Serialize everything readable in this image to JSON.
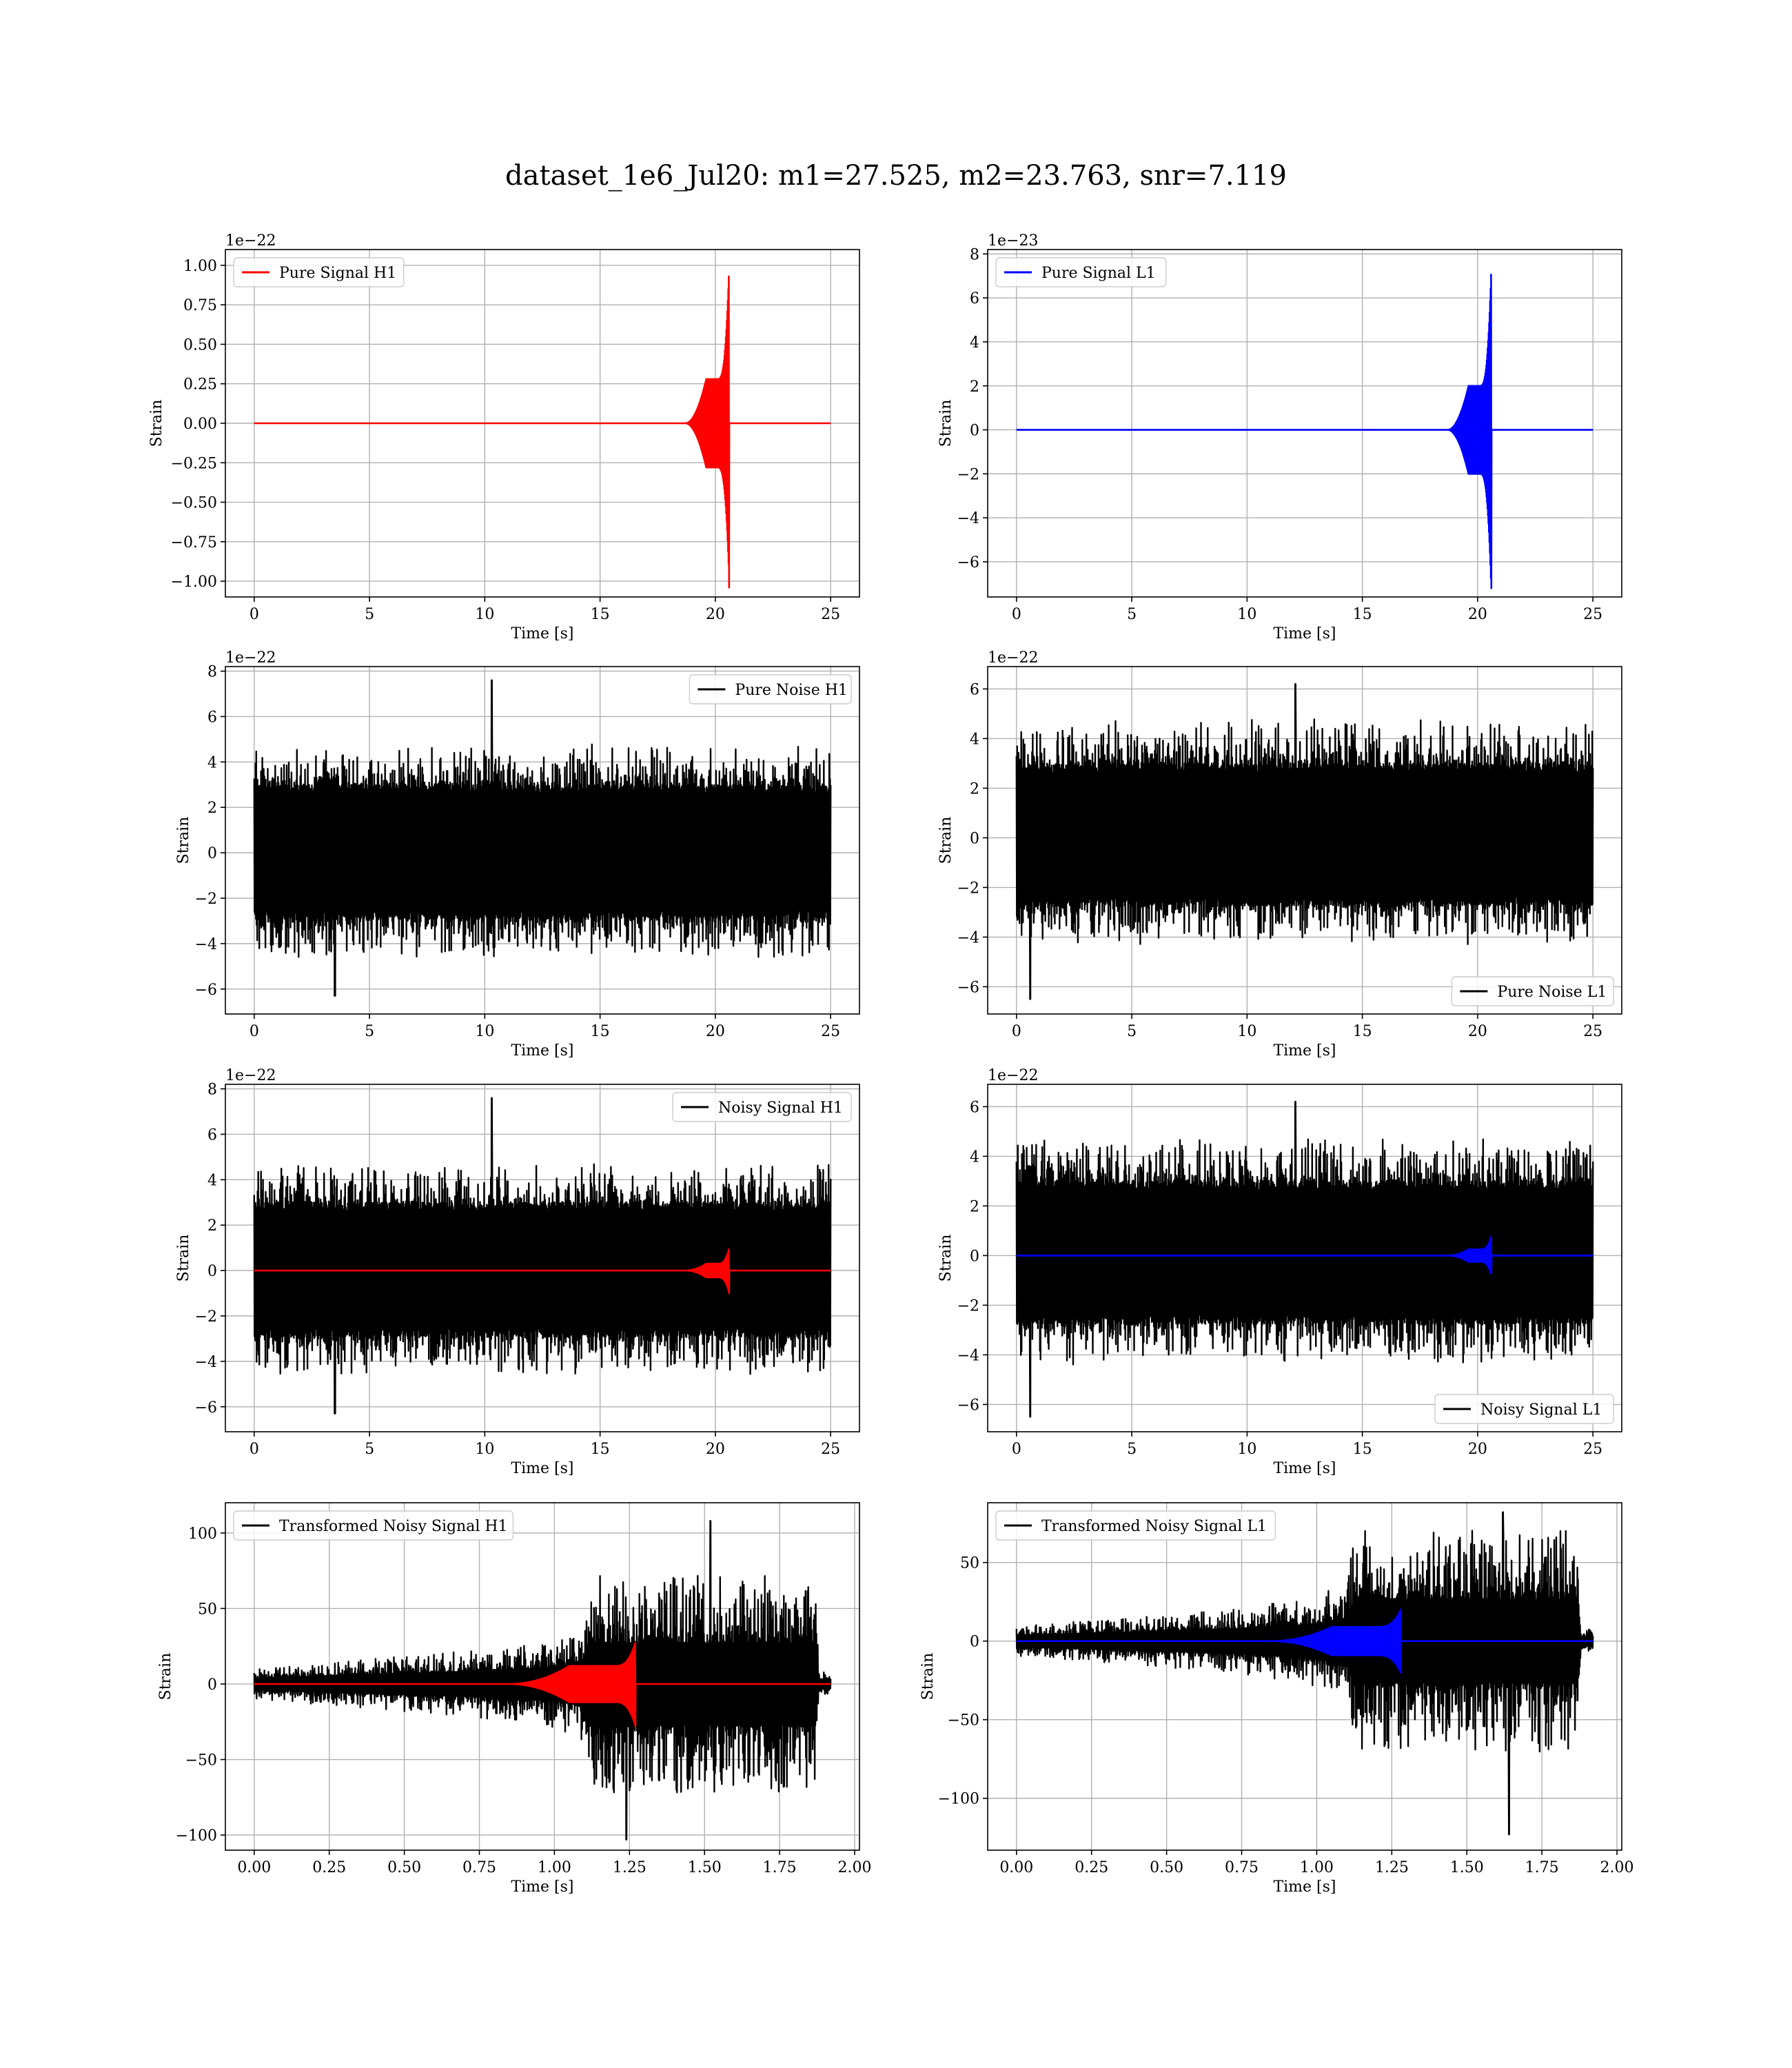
{
  "figure": {
    "title": "dataset_1e6_Jul20: m1=27.525, m2=23.763, snr=7.119"
  },
  "chart_data": [
    {
      "type": "line",
      "xlabel": "Time [s]",
      "ylabel": "Strain",
      "offset_text": "1e−22",
      "xlim": [
        -1.25,
        26.25
      ],
      "ylim": [
        -1.1,
        1.1
      ],
      "xticks": [
        0,
        5,
        10,
        15,
        20,
        25
      ],
      "xtick_labels": [
        "0",
        "5",
        "10",
        "15",
        "20",
        "25"
      ],
      "yticks": [
        1.0,
        0.75,
        0.5,
        0.25,
        0.0,
        -0.25,
        -0.5,
        -0.75,
        -1.0
      ],
      "ytick_labels": [
        "1.00",
        "0.75",
        "0.50",
        "0.25",
        "0.00",
        "−0.25",
        "−0.50",
        "−0.75",
        "−1.00"
      ],
      "grid": true,
      "legend_position": "upper-left",
      "series": [
        {
          "name": "Pure Signal H1",
          "color": "#ff0000",
          "kind": "chirp",
          "x_range": [
            0,
            25
          ],
          "baseline": 0,
          "envelope": {
            "onset": 18.7,
            "plateau_start": 19.6,
            "plateau_end": 20.1,
            "plateau_amp": 0.28,
            "merger_time": 20.6,
            "merger_amp": 1.0,
            "min_amp": -1.04
          }
        }
      ]
    },
    {
      "type": "line",
      "xlabel": "Time [s]",
      "ylabel": "Strain",
      "offset_text": "1e−23",
      "xlim": [
        -1.25,
        26.25
      ],
      "ylim": [
        -7.6,
        8.2
      ],
      "xticks": [
        0,
        5,
        10,
        15,
        20,
        25
      ],
      "xtick_labels": [
        "0",
        "5",
        "10",
        "15",
        "20",
        "25"
      ],
      "yticks": [
        8,
        6,
        4,
        2,
        0,
        -2,
        -4,
        -6
      ],
      "ytick_labels": [
        "8",
        "6",
        "4",
        "2",
        "0",
        "−2",
        "−4",
        "−6"
      ],
      "grid": true,
      "legend_position": "upper-left",
      "series": [
        {
          "name": "Pure Signal L1",
          "color": "#0000ff",
          "kind": "chirp",
          "x_range": [
            0,
            25
          ],
          "baseline": 0,
          "envelope": {
            "onset": 18.7,
            "plateau_start": 19.6,
            "plateau_end": 20.1,
            "plateau_amp": 2.0,
            "merger_time": 20.6,
            "merger_amp": 7.6,
            "min_amp": -7.2
          }
        }
      ]
    },
    {
      "type": "line",
      "xlabel": "Time [s]",
      "ylabel": "Strain",
      "offset_text": "1e−22",
      "xlim": [
        -1.25,
        26.25
      ],
      "ylim": [
        -7.1,
        8.2
      ],
      "xticks": [
        0,
        5,
        10,
        15,
        20,
        25
      ],
      "xtick_labels": [
        "0",
        "5",
        "10",
        "15",
        "20",
        "25"
      ],
      "yticks": [
        8,
        6,
        4,
        2,
        0,
        -2,
        -4,
        -6
      ],
      "ytick_labels": [
        "8",
        "6",
        "4",
        "2",
        "0",
        "−2",
        "−4",
        "−6"
      ],
      "grid": true,
      "legend_position": "upper-right",
      "series": [
        {
          "name": "Pure Noise H1",
          "color": "#000000",
          "kind": "noise",
          "x_range": [
            0,
            25
          ],
          "band": [
            -3.2,
            3.3
          ],
          "peaks": {
            "max": 7.6,
            "max_at": 10.3,
            "min": -6.3,
            "min_at": 3.5
          }
        }
      ]
    },
    {
      "type": "line",
      "xlabel": "Time [s]",
      "ylabel": "Strain",
      "offset_text": "1e−22",
      "xlim": [
        -1.25,
        26.25
      ],
      "ylim": [
        -7.1,
        6.9
      ],
      "xticks": [
        0,
        5,
        10,
        15,
        20,
        25
      ],
      "xtick_labels": [
        "0",
        "5",
        "10",
        "15",
        "20",
        "25"
      ],
      "yticks": [
        6,
        4,
        2,
        0,
        -2,
        -4,
        -6
      ],
      "ytick_labels": [
        "6",
        "4",
        "2",
        "0",
        "−2",
        "−4",
        "−6"
      ],
      "grid": true,
      "legend_position": "lower-right",
      "series": [
        {
          "name": "Pure Noise L1",
          "color": "#000000",
          "kind": "noise",
          "x_range": [
            0,
            25
          ],
          "band": [
            -3.0,
            3.3
          ],
          "peaks": {
            "max": 6.2,
            "max_at": 12.1,
            "min": -6.5,
            "min_at": 0.6
          }
        }
      ]
    },
    {
      "type": "line",
      "xlabel": "Time [s]",
      "ylabel": "Strain",
      "offset_text": "1e−22",
      "xlim": [
        -1.25,
        26.25
      ],
      "ylim": [
        -7.1,
        8.2
      ],
      "xticks": [
        0,
        5,
        10,
        15,
        20,
        25
      ],
      "xtick_labels": [
        "0",
        "5",
        "10",
        "15",
        "20",
        "25"
      ],
      "yticks": [
        8,
        6,
        4,
        2,
        0,
        -2,
        -4,
        -6
      ],
      "ytick_labels": [
        "8",
        "6",
        "4",
        "2",
        "0",
        "−2",
        "−4",
        "−6"
      ],
      "grid": true,
      "legend_position": "upper-right",
      "series": [
        {
          "name": "Noisy Signal H1",
          "color": "#000000",
          "kind": "noise",
          "x_range": [
            0,
            25
          ],
          "band": [
            -3.2,
            3.3
          ],
          "peaks": {
            "max": 7.6,
            "max_at": 10.3,
            "min": -6.3,
            "min_at": 3.5
          }
        },
        {
          "name": "",
          "color": "#ff0000",
          "kind": "chirp",
          "x_range": [
            0,
            25
          ],
          "baseline": 0,
          "envelope": {
            "onset": 18.7,
            "plateau_start": 19.6,
            "plateau_end": 20.1,
            "plateau_amp": 0.3,
            "merger_time": 20.6,
            "merger_amp": 1.0,
            "min_amp": -1.0
          }
        }
      ]
    },
    {
      "type": "line",
      "xlabel": "Time [s]",
      "ylabel": "Strain",
      "offset_text": "1e−22",
      "xlim": [
        -1.25,
        26.25
      ],
      "ylim": [
        -7.1,
        6.9
      ],
      "xticks": [
        0,
        5,
        10,
        15,
        20,
        25
      ],
      "xtick_labels": [
        "0",
        "5",
        "10",
        "15",
        "20",
        "25"
      ],
      "yticks": [
        6,
        4,
        2,
        0,
        -2,
        -4,
        -6
      ],
      "ytick_labels": [
        "6",
        "4",
        "2",
        "0",
        "−2",
        "−4",
        "−6"
      ],
      "grid": true,
      "legend_position": "lower-right",
      "series": [
        {
          "name": "Noisy Signal L1",
          "color": "#000000",
          "kind": "noise",
          "x_range": [
            0,
            25
          ],
          "band": [
            -3.0,
            3.3
          ],
          "peaks": {
            "max": 6.2,
            "max_at": 12.1,
            "min": -6.5,
            "min_at": 0.6
          }
        },
        {
          "name": "",
          "color": "#0000ff",
          "kind": "chirp",
          "x_range": [
            0,
            25
          ],
          "baseline": 0,
          "envelope": {
            "onset": 18.7,
            "plateau_start": 19.6,
            "plateau_end": 20.1,
            "plateau_amp": 0.25,
            "merger_time": 20.6,
            "merger_amp": 0.8,
            "min_amp": -0.7
          }
        }
      ]
    },
    {
      "type": "line",
      "xlabel": "Time [s]",
      "ylabel": "Strain",
      "offset_text": "",
      "xlim": [
        -0.096,
        2.016
      ],
      "ylim": [
        -110,
        120
      ],
      "xticks": [
        0.0,
        0.25,
        0.5,
        0.75,
        1.0,
        1.25,
        1.5,
        1.75,
        2.0
      ],
      "xtick_labels": [
        "0.00",
        "0.25",
        "0.50",
        "0.75",
        "1.00",
        "1.25",
        "1.50",
        "1.75",
        "2.00"
      ],
      "yticks": [
        100,
        50,
        0,
        -50,
        -100
      ],
      "ytick_labels": [
        "100",
        "50",
        "0",
        "−50",
        "−100"
      ],
      "grid": true,
      "legend_position": "upper-left",
      "series": [
        {
          "name": "Transformed Noisy Signal H1",
          "color": "#000000",
          "kind": "growing-noise",
          "x_range": [
            0,
            1.92
          ],
          "profile_t": [
            0.0,
            0.35,
            0.75,
            1.0,
            1.1,
            1.13,
            1.87,
            1.88,
            1.92
          ],
          "profile_amp": [
            6,
            10,
            14,
            18,
            24,
            45,
            45,
            5,
            5
          ],
          "peaks": {
            "max": 108,
            "max_at": 1.52,
            "min": -103,
            "min_at": 1.24
          }
        },
        {
          "name": "",
          "color": "#ff0000",
          "kind": "chirp",
          "x_range": [
            0,
            1.92
          ],
          "baseline": 0,
          "envelope": {
            "onset": 0.85,
            "plateau_start": 1.05,
            "plateau_end": 1.2,
            "plateau_amp": 12,
            "merger_time": 1.27,
            "merger_amp": 28,
            "min_amp": -28
          }
        }
      ]
    },
    {
      "type": "line",
      "xlabel": "Time [s]",
      "ylabel": "Strain",
      "offset_text": "",
      "xlim": [
        -0.096,
        2.016
      ],
      "ylim": [
        -133,
        88
      ],
      "xticks": [
        0.0,
        0.25,
        0.5,
        0.75,
        1.0,
        1.25,
        1.5,
        1.75,
        2.0
      ],
      "xtick_labels": [
        "0.00",
        "0.25",
        "0.50",
        "0.75",
        "1.00",
        "1.25",
        "1.50",
        "1.75",
        "2.00"
      ],
      "yticks": [
        50,
        0,
        -50,
        -100
      ],
      "ytick_labels": [
        "50",
        "0",
        "−50",
        "−100"
      ],
      "grid": true,
      "legend_position": "upper-left",
      "series": [
        {
          "name": "Transformed Noisy Signal L1",
          "color": "#000000",
          "kind": "growing-noise",
          "x_range": [
            0,
            1.92
          ],
          "profile_t": [
            0.0,
            0.35,
            0.75,
            1.0,
            1.1,
            1.13,
            1.87,
            1.88,
            1.92
          ],
          "profile_amp": [
            6,
            9,
            13,
            18,
            24,
            44,
            44,
            5,
            5
          ],
          "peaks": {
            "max": 82,
            "max_at": 1.62,
            "min": -123,
            "min_at": 1.64
          }
        },
        {
          "name": "",
          "color": "#0000ff",
          "kind": "chirp",
          "x_range": [
            0,
            1.92
          ],
          "baseline": 0,
          "envelope": {
            "onset": 0.85,
            "plateau_start": 1.05,
            "plateau_end": 1.2,
            "plateau_amp": 9,
            "merger_time": 1.28,
            "merger_amp": 20,
            "min_amp": -20
          }
        }
      ]
    }
  ]
}
